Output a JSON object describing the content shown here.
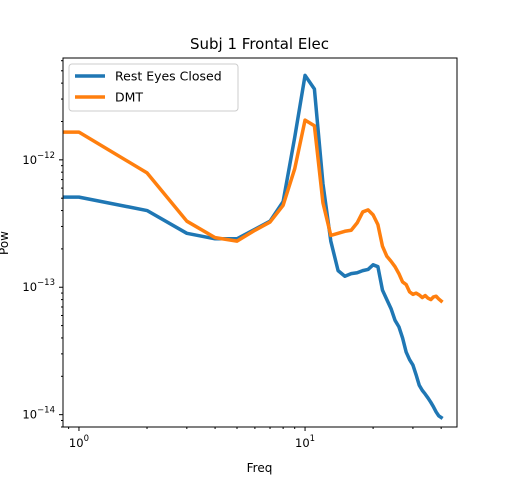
{
  "chart_data": {
    "type": "line",
    "title": "Subj 1 Frontal Elec",
    "xlabel": "Freq",
    "ylabel": "Pow",
    "xscale": "log",
    "yscale": "log",
    "xlim": [
      0.85,
      47
    ],
    "ylim": [
      8e-15,
      6.3e-12
    ],
    "grid": false,
    "legend_position": "top-left",
    "x_tick_labels": [
      {
        "value": 1,
        "base": "10",
        "exp": "0"
      },
      {
        "value": 10,
        "base": "10",
        "exp": "1"
      }
    ],
    "y_tick_labels": [
      {
        "value": 1e-14,
        "base": "10",
        "exp": "−14"
      },
      {
        "value": 1e-13,
        "base": "10",
        "exp": "−13"
      },
      {
        "value": 1e-12,
        "base": "10",
        "exp": "−12"
      }
    ],
    "x": [
      0.5,
      1,
      2,
      3,
      4,
      5,
      6,
      7,
      8,
      9,
      10,
      11,
      12,
      13,
      14,
      15,
      16,
      17,
      18,
      19,
      20,
      21,
      22,
      23,
      24,
      25,
      26,
      27,
      28,
      29,
      30,
      31,
      32,
      33,
      34,
      35,
      36,
      37,
      38,
      39,
      40
    ],
    "series": [
      {
        "name": "Rest Eyes Closed",
        "color": "#1f77b4",
        "values": [
          5.1e-13,
          5.1e-13,
          4e-13,
          2.65e-13,
          2.4e-13,
          2.4e-13,
          2.85e-13,
          3.3e-13,
          4.7e-13,
          1.5e-12,
          4.6e-12,
          3.6e-12,
          6.5e-13,
          2.3e-13,
          1.35e-13,
          1.22e-13,
          1.28e-13,
          1.3e-13,
          1.35e-13,
          1.38e-13,
          1.5e-13,
          1.45e-13,
          9.5e-14,
          8e-14,
          6.8e-14,
          5.5e-14,
          4.9e-14,
          4e-14,
          3.1e-14,
          2.7e-14,
          2.45e-14,
          2.05e-14,
          1.7e-14,
          1.55e-14,
          1.45e-14,
          1.35e-14,
          1.25e-14,
          1.15e-14,
          1.05e-14,
          9.8e-15,
          9.5e-15
        ]
      },
      {
        "name": "DMT",
        "color": "#ff7f0e",
        "values": [
          1.65e-12,
          1.65e-12,
          7.9e-13,
          3.3e-13,
          2.45e-13,
          2.3e-13,
          2.8e-13,
          3.25e-13,
          4.4e-13,
          8.5e-13,
          2.05e-12,
          1.85e-12,
          4.6e-13,
          2.55e-13,
          2.65e-13,
          2.75e-13,
          2.8e-13,
          3.2e-13,
          3.9e-13,
          4.05e-13,
          3.7e-13,
          3.1e-13,
          2.1e-13,
          1.75e-13,
          1.6e-13,
          1.45e-13,
          1.28e-13,
          1.1e-13,
          1.05e-13,
          9.2e-14,
          8.8e-14,
          9e-14,
          8.7e-14,
          8.3e-14,
          8.6e-14,
          8.2e-14,
          8e-14,
          8.4e-14,
          8.5e-14,
          8.1e-14,
          7.8e-14
        ]
      }
    ]
  }
}
